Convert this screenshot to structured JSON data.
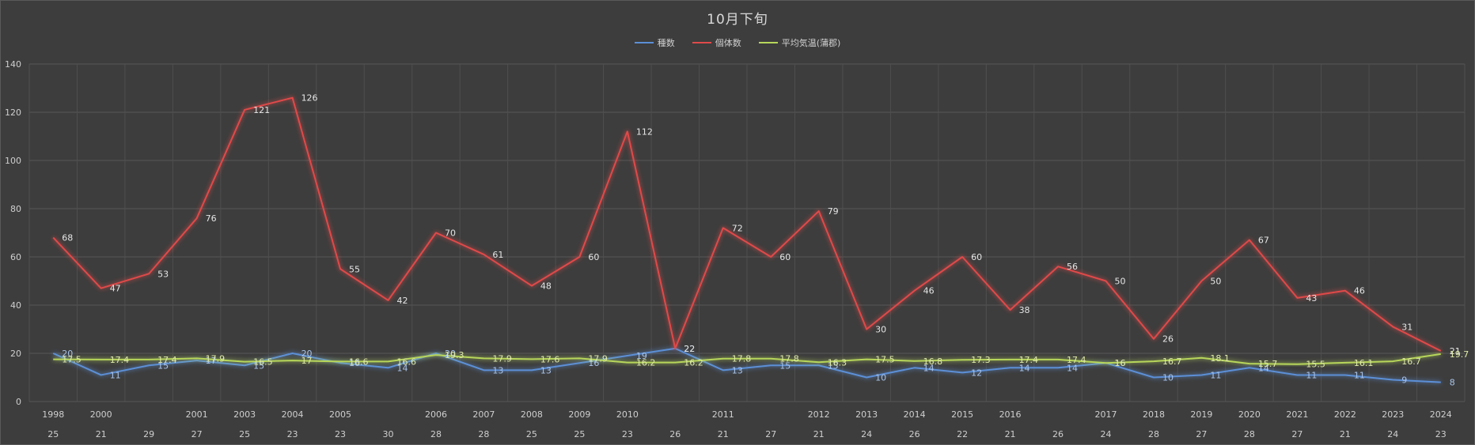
{
  "chart_data": {
    "type": "line",
    "title": "10月下旬",
    "ylim": [
      0,
      140
    ],
    "yticks": [
      0,
      20,
      40,
      60,
      80,
      100,
      120,
      140
    ],
    "grid": true,
    "legend_position": "top",
    "categories": [
      {
        "year": "1998",
        "day": "25"
      },
      {
        "year": "2000",
        "day": "21"
      },
      {
        "year": "",
        "day": "29"
      },
      {
        "year": "2001",
        "day": "27"
      },
      {
        "year": "2003",
        "day": "25"
      },
      {
        "year": "2004",
        "day": "23"
      },
      {
        "year": "2005",
        "day": "23"
      },
      {
        "year": "",
        "day": "30"
      },
      {
        "year": "2006",
        "day": "28"
      },
      {
        "year": "2007",
        "day": "28"
      },
      {
        "year": "2008",
        "day": "25"
      },
      {
        "year": "2009",
        "day": "25"
      },
      {
        "year": "2010",
        "day": "23"
      },
      {
        "year": "",
        "day": "26"
      },
      {
        "year": "2011",
        "day": "21"
      },
      {
        "year": "",
        "day": "27"
      },
      {
        "year": "2012",
        "day": "21"
      },
      {
        "year": "2013",
        "day": "24"
      },
      {
        "year": "2014",
        "day": "26"
      },
      {
        "year": "2015",
        "day": "22"
      },
      {
        "year": "2016",
        "day": "21"
      },
      {
        "year": "",
        "day": "26"
      },
      {
        "year": "2017",
        "day": "24"
      },
      {
        "year": "2018",
        "day": "28"
      },
      {
        "year": "2019",
        "day": "27"
      },
      {
        "year": "2020",
        "day": "28"
      },
      {
        "year": "2021",
        "day": "27"
      },
      {
        "year": "2022",
        "day": "21"
      },
      {
        "year": "2023",
        "day": "24"
      },
      {
        "year": "2024",
        "day": "23"
      }
    ],
    "series": [
      {
        "name": "種数",
        "color": "#5b8fd6",
        "values": [
          20,
          11,
          15,
          17,
          15,
          20,
          16,
          14,
          20,
          13,
          13,
          16,
          19,
          22,
          13,
          15,
          15,
          10,
          14,
          12,
          14,
          14,
          16,
          10,
          11,
          14,
          11,
          11,
          9,
          8
        ]
      },
      {
        "name": "個体数",
        "color": "#e04a4a",
        "values": [
          68,
          47,
          53,
          76,
          121,
          126,
          55,
          42,
          70,
          61,
          48,
          60,
          112,
          22,
          72,
          60,
          79,
          30,
          46,
          60,
          38,
          56,
          50,
          26,
          50,
          67,
          43,
          46,
          31,
          21
        ]
      },
      {
        "name": "平均気温(蒲郡)",
        "color": "#b7d65a",
        "values": [
          17.5,
          17.4,
          17.4,
          17.9,
          16.5,
          17,
          16.6,
          16.6,
          19.3,
          17.9,
          17.6,
          17.9,
          16.2,
          16.2,
          17.8,
          17.8,
          16.3,
          17.5,
          16.8,
          17.3,
          17.4,
          17.4,
          16,
          16.7,
          18.1,
          15.7,
          15.5,
          16.1,
          16.7,
          19.7
        ]
      }
    ]
  }
}
